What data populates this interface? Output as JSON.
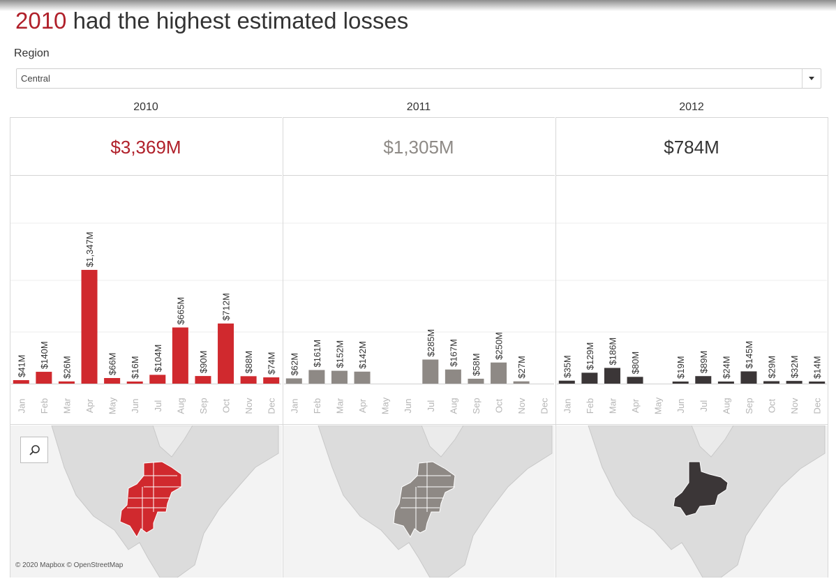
{
  "title": {
    "highlight": "2010",
    "rest": " had the highest estimated losses"
  },
  "filter": {
    "label": "Region",
    "selected": "Central"
  },
  "colors": {
    "2010": "#d0292e",
    "2011": "#8e8985",
    "2012": "#3b3637",
    "highlight_text": "#b0202a"
  },
  "panels": [
    {
      "year": "2010",
      "total": "$3,369M",
      "total_color": "#b0202a"
    },
    {
      "year": "2011",
      "total": "$1,305M",
      "total_color": "#8e8a86"
    },
    {
      "year": "2012",
      "total": "$784M",
      "total_color": "#333333"
    }
  ],
  "icons": {
    "map_search": "search-icon",
    "dropdown": "chevron-down-icon"
  },
  "map_attribution": "© 2020 Mapbox © OpenStreetMap",
  "chart_data": {
    "type": "bar",
    "categories": [
      "Jan",
      "Feb",
      "Mar",
      "Apr",
      "May",
      "Jun",
      "Jul",
      "Aug",
      "Sep",
      "Oct",
      "Nov",
      "Dec"
    ],
    "series": [
      {
        "name": "2010",
        "values": [
          41,
          140,
          26,
          1347,
          66,
          16,
          104,
          665,
          90,
          712,
          88,
          74
        ],
        "labels": [
          "$41M",
          "$140M",
          "$26M",
          "$1,347M",
          "$66M",
          "$16M",
          "$104M",
          "$665M",
          "$90M",
          "$712M",
          "$88M",
          "$74M"
        ]
      },
      {
        "name": "2011",
        "values": [
          62,
          161,
          152,
          142,
          null,
          null,
          285,
          167,
          58,
          250,
          27,
          null
        ],
        "labels": [
          "$62M",
          "$161M",
          "$152M",
          "$142M",
          "",
          "",
          "$285M",
          "$167M",
          "$58M",
          "$250M",
          "$27M",
          ""
        ]
      },
      {
        "name": "2012",
        "values": [
          35,
          129,
          186,
          80,
          null,
          19,
          89,
          24,
          145,
          29,
          32,
          14
        ],
        "labels": [
          "$35M",
          "$129M",
          "$186M",
          "$80M",
          "",
          "$19M",
          "$89M",
          "$24M",
          "$145M",
          "$29M",
          "$32M",
          "$14M"
        ]
      }
    ],
    "ylim": [
      0,
      1900
    ],
    "grid": true,
    "xlabel": "",
    "ylabel": ""
  }
}
